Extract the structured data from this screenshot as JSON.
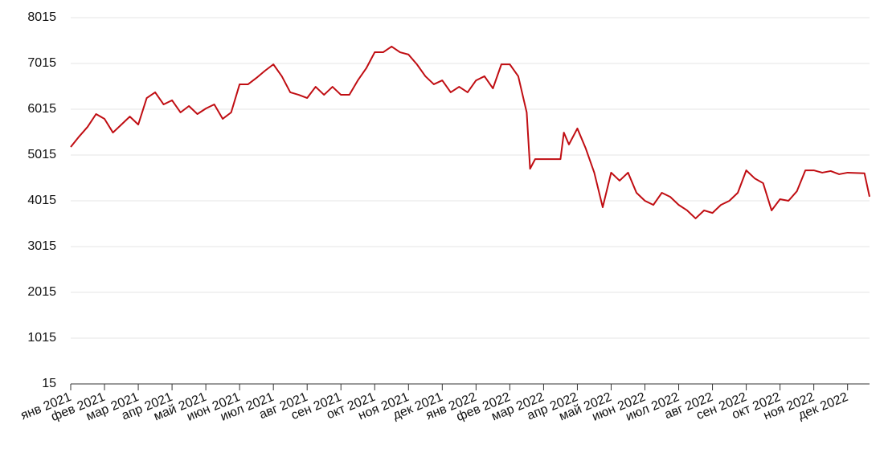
{
  "chart_data": {
    "type": "line",
    "color": "#c00d12",
    "grid": true,
    "ylim": [
      15,
      8015
    ],
    "yticks": [
      15,
      1015,
      2015,
      3015,
      4015,
      5015,
      6015,
      7015,
      8015
    ],
    "xlim": [
      0,
      23.65
    ],
    "xticks": [
      {
        "value": 0,
        "label": "янв 2021"
      },
      {
        "value": 1,
        "label": "фев 2021"
      },
      {
        "value": 2,
        "label": "мар 2021"
      },
      {
        "value": 3,
        "label": "апр 2021"
      },
      {
        "value": 4,
        "label": "май 2021"
      },
      {
        "value": 5,
        "label": "июн 2021"
      },
      {
        "value": 6,
        "label": "июл 2021"
      },
      {
        "value": 7,
        "label": "авг 2021"
      },
      {
        "value": 8,
        "label": "сен 2021"
      },
      {
        "value": 9,
        "label": "окт 2021"
      },
      {
        "value": 10,
        "label": "ноя 2021"
      },
      {
        "value": 11,
        "label": "дек 2021"
      },
      {
        "value": 12,
        "label": "янв 2022"
      },
      {
        "value": 13,
        "label": "фев 2022"
      },
      {
        "value": 14,
        "label": "мар 2022"
      },
      {
        "value": 15,
        "label": "апр 2022"
      },
      {
        "value": 16,
        "label": "май 2022"
      },
      {
        "value": 17,
        "label": "июн 2022"
      },
      {
        "value": 18,
        "label": "июл 2022"
      },
      {
        "value": 19,
        "label": "авг 2022"
      },
      {
        "value": 20,
        "label": "сен 2022"
      },
      {
        "value": 21,
        "label": "окт 2022"
      },
      {
        "value": 22,
        "label": "ноя 2022"
      },
      {
        "value": 23,
        "label": "дек 2022"
      }
    ],
    "x": [
      0,
      0.25,
      0.5,
      0.75,
      1,
      1.25,
      1.5,
      1.75,
      2,
      2.25,
      2.5,
      2.75,
      3,
      3.25,
      3.5,
      3.75,
      4,
      4.25,
      4.5,
      4.75,
      5,
      5.25,
      5.5,
      5.75,
      6,
      6.25,
      6.5,
      6.75,
      7,
      7.25,
      7.5,
      7.75,
      8,
      8.25,
      8.5,
      8.75,
      9,
      9.25,
      9.5,
      9.75,
      10,
      10.25,
      10.5,
      10.75,
      11,
      11.25,
      11.5,
      11.75,
      12,
      12.25,
      12.5,
      12.75,
      13,
      13.25,
      13.5,
      13.6,
      13.75,
      14,
      14.25,
      14.5,
      14.6,
      14.75,
      15,
      15.25,
      15.5,
      15.75,
      16,
      16.25,
      16.5,
      16.75,
      17,
      17.25,
      17.5,
      17.75,
      18,
      18.25,
      18.5,
      18.75,
      19,
      19.25,
      19.5,
      19.75,
      20,
      20.25,
      20.5,
      20.75,
      21,
      21.25,
      21.5,
      21.75,
      22,
      22.25,
      22.5,
      22.75,
      23,
      23.5,
      23.65
    ],
    "values": [
      5190,
      5420,
      5630,
      5910,
      5805,
      5505,
      5680,
      5855,
      5680,
      6260,
      6385,
      6120,
      6210,
      5945,
      6085,
      5910,
      6030,
      6120,
      5805,
      5945,
      6560,
      6560,
      6700,
      6855,
      6995,
      6735,
      6385,
      6330,
      6260,
      6505,
      6330,
      6505,
      6330,
      6330,
      6645,
      6910,
      7260,
      7260,
      7385,
      7260,
      7210,
      6995,
      6735,
      6560,
      6645,
      6385,
      6505,
      6385,
      6645,
      6735,
      6470,
      6995,
      6995,
      6735,
      5945,
      4715,
      4925,
      4925,
      4925,
      4925,
      5505,
      5245,
      5595,
      5155,
      4630,
      3875,
      4630,
      4455,
      4630,
      4190,
      4015,
      3925,
      4190,
      4100,
      3925,
      3805,
      3630,
      3805,
      3750,
      3925,
      4015,
      4190,
      4680,
      4505,
      4400,
      3805,
      4050,
      4015,
      4225,
      4680,
      4680,
      4630,
      4665,
      4595,
      4630,
      4615,
      4105
    ]
  }
}
